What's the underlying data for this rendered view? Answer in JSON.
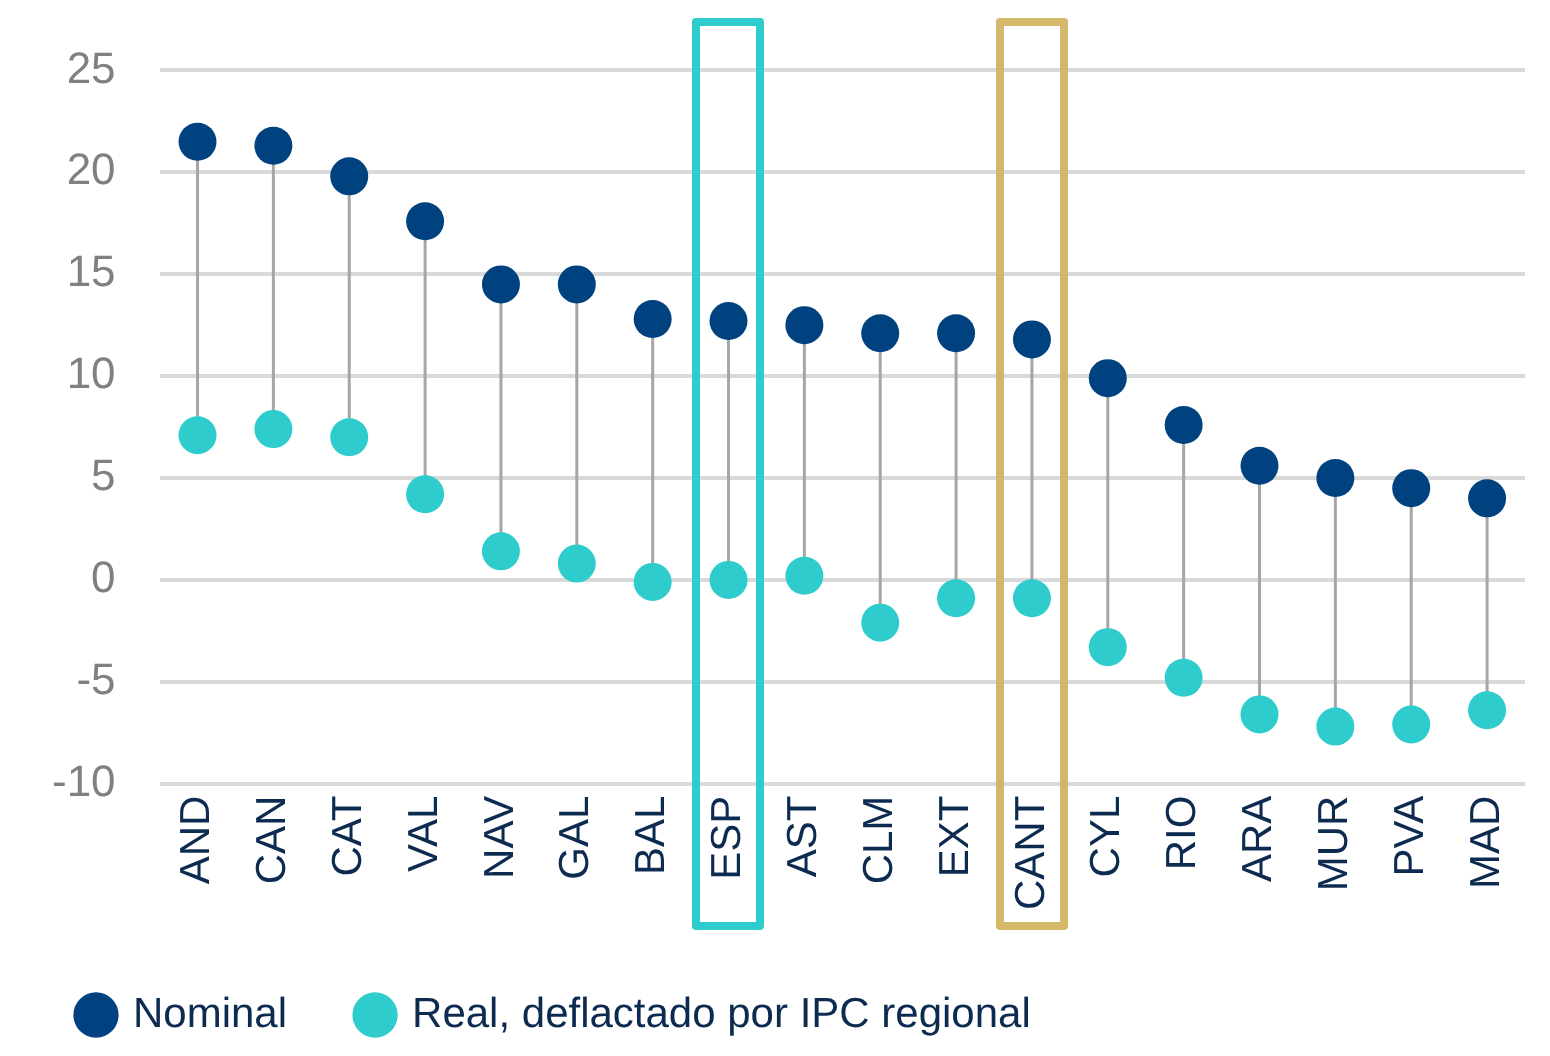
{
  "chart_data": {
    "type": "scatter",
    "categories": [
      "AND",
      "CAN",
      "CAT",
      "VAL",
      "NAV",
      "GAL",
      "BAL",
      "ESP",
      "AST",
      "CLM",
      "EXT",
      "CANT",
      "CYL",
      "RIO",
      "ARA",
      "MUR",
      "PVA",
      "MAD"
    ],
    "series": [
      {
        "name": "Nominal",
        "color": "#00427f",
        "values": [
          21.5,
          21.3,
          19.8,
          17.6,
          14.5,
          14.5,
          12.8,
          12.7,
          12.5,
          12.1,
          12.1,
          11.8,
          9.9,
          7.6,
          5.6,
          5.0,
          4.5,
          4.0
        ]
      },
      {
        "name": "Real, deflactado por IPC regional",
        "color": "#2ecccc",
        "values": [
          7.1,
          7.4,
          7.0,
          4.2,
          1.4,
          0.8,
          -0.1,
          0.0,
          0.2,
          -2.1,
          -0.9,
          -0.9,
          -3.3,
          -4.8,
          -6.6,
          -7.2,
          -7.1,
          -6.4
        ]
      }
    ],
    "ylim": [
      -10,
      25
    ],
    "yticks": [
      -10,
      -5,
      0,
      5,
      10,
      15,
      20,
      25
    ],
    "grid": "y",
    "legend": "bottom left",
    "marker": "circle"
  }
}
